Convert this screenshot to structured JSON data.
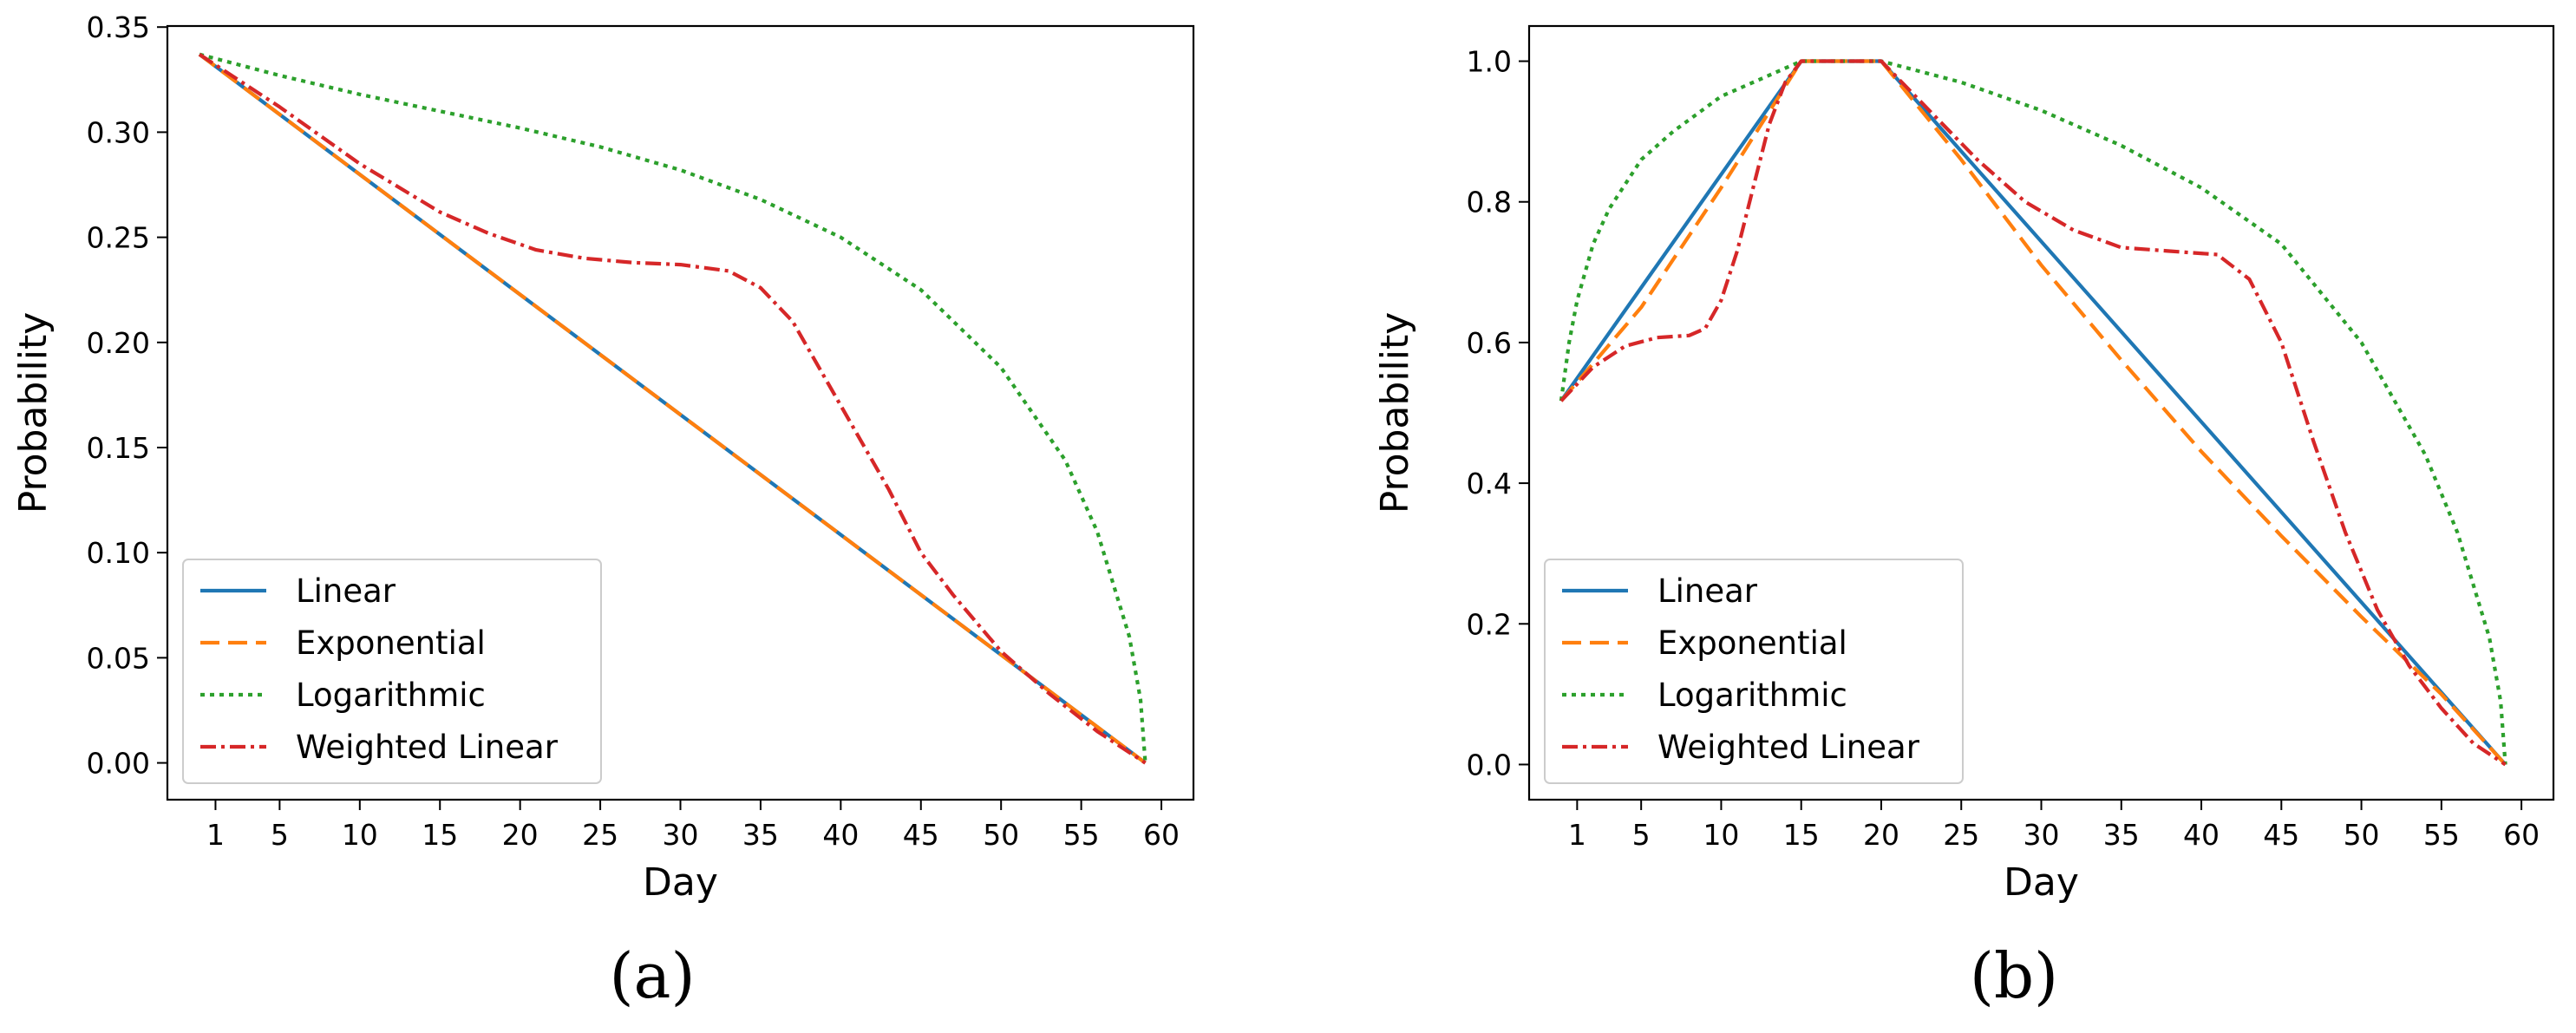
{
  "chart_data": [
    {
      "type": "line",
      "panel_label": "(a)",
      "xlabel": "Day",
      "ylabel": "Probability",
      "xlim": [
        -2,
        62
      ],
      "ylim": [
        -0.0175,
        0.3505
      ],
      "x_ticks": [
        1,
        5,
        10,
        15,
        20,
        25,
        30,
        35,
        40,
        45,
        50,
        55,
        60
      ],
      "y_ticks": [
        0.0,
        0.05,
        0.1,
        0.15,
        0.2,
        0.25,
        0.3,
        0.35
      ],
      "y_tick_labels": [
        "0.00",
        "0.05",
        "0.10",
        "0.15",
        "0.20",
        "0.25",
        "0.30",
        "0.35"
      ],
      "legend": "lower-left",
      "series": [
        {
          "name": "Linear",
          "color": "#1f77b4",
          "dash": "solid",
          "x": [
            0,
            59
          ],
          "values": [
            0.337,
            0.0
          ]
        },
        {
          "name": "Exponential",
          "color": "#ff7f0e",
          "dash": "dashed",
          "x": [
            0,
            59
          ],
          "values": [
            0.337,
            0.0
          ]
        },
        {
          "name": "Logarithmic",
          "color": "#2ca02c",
          "dash": "dotted",
          "x": [
            0,
            5,
            10,
            15,
            20,
            25,
            30,
            35,
            40,
            45,
            50,
            54,
            56,
            58,
            58.7,
            59
          ],
          "values": [
            0.337,
            0.327,
            0.318,
            0.31,
            0.302,
            0.293,
            0.282,
            0.268,
            0.25,
            0.225,
            0.188,
            0.144,
            0.11,
            0.06,
            0.03,
            0.0
          ]
        },
        {
          "name": "Weighted Linear",
          "color": "#d62728",
          "dash": "dashdot",
          "x": [
            0,
            5,
            10,
            15,
            18,
            21,
            24,
            27,
            30,
            33,
            35,
            37,
            40,
            43,
            45,
            47,
            50,
            53,
            56,
            59
          ],
          "values": [
            0.337,
            0.312,
            0.285,
            0.262,
            0.252,
            0.244,
            0.24,
            0.238,
            0.237,
            0.234,
            0.226,
            0.21,
            0.17,
            0.13,
            0.1,
            0.08,
            0.053,
            0.033,
            0.015,
            0.0
          ]
        }
      ]
    },
    {
      "type": "line",
      "panel_label": "(b)",
      "xlabel": "Day",
      "ylabel": "Probability",
      "xlim": [
        -2,
        62
      ],
      "ylim": [
        -0.05,
        1.05
      ],
      "x_ticks": [
        1,
        5,
        10,
        15,
        20,
        25,
        30,
        35,
        40,
        45,
        50,
        55,
        60
      ],
      "y_ticks": [
        0.0,
        0.2,
        0.4,
        0.6,
        0.8,
        1.0
      ],
      "y_tick_labels": [
        "0.0",
        "0.2",
        "0.4",
        "0.6",
        "0.8",
        "1.0"
      ],
      "legend": "lower-left",
      "series": [
        {
          "name": "Linear",
          "color": "#1f77b4",
          "dash": "solid",
          "x": [
            0,
            15,
            20,
            59
          ],
          "values": [
            0.517,
            1.0,
            1.0,
            0.0
          ]
        },
        {
          "name": "Exponential",
          "color": "#ff7f0e",
          "dash": "dashed",
          "x": [
            0,
            5,
            10,
            15,
            20,
            25,
            30,
            35,
            40,
            45,
            50,
            55,
            59
          ],
          "values": [
            0.517,
            0.65,
            0.82,
            1.0,
            1.0,
            0.86,
            0.71,
            0.575,
            0.445,
            0.325,
            0.21,
            0.1,
            0.0
          ]
        },
        {
          "name": "Logarithmic",
          "color": "#2ca02c",
          "dash": "dotted",
          "x": [
            0,
            0.5,
            1,
            2,
            3,
            5,
            7,
            10,
            13,
            15,
            20,
            25,
            30,
            35,
            40,
            45,
            50,
            54,
            56,
            58,
            58.7,
            59
          ],
          "values": [
            0.517,
            0.6,
            0.66,
            0.74,
            0.79,
            0.86,
            0.9,
            0.95,
            0.98,
            1.0,
            1.0,
            0.97,
            0.93,
            0.88,
            0.82,
            0.74,
            0.6,
            0.44,
            0.33,
            0.18,
            0.09,
            0.0
          ]
        },
        {
          "name": "Weighted Linear",
          "color": "#d62728",
          "dash": "dashdot",
          "x": [
            0,
            2,
            4,
            6,
            8,
            9,
            10,
            11,
            12,
            13,
            14,
            15,
            20,
            23,
            26,
            29,
            32,
            35,
            38,
            41,
            43,
            45,
            47,
            49,
            51,
            53,
            55,
            57,
            59
          ],
          "values": [
            0.517,
            0.565,
            0.595,
            0.607,
            0.61,
            0.62,
            0.66,
            0.73,
            0.82,
            0.91,
            0.97,
            1.0,
            1.0,
            0.93,
            0.86,
            0.8,
            0.76,
            0.735,
            0.73,
            0.725,
            0.69,
            0.6,
            0.46,
            0.33,
            0.22,
            0.14,
            0.08,
            0.03,
            0.0
          ]
        }
      ]
    }
  ]
}
